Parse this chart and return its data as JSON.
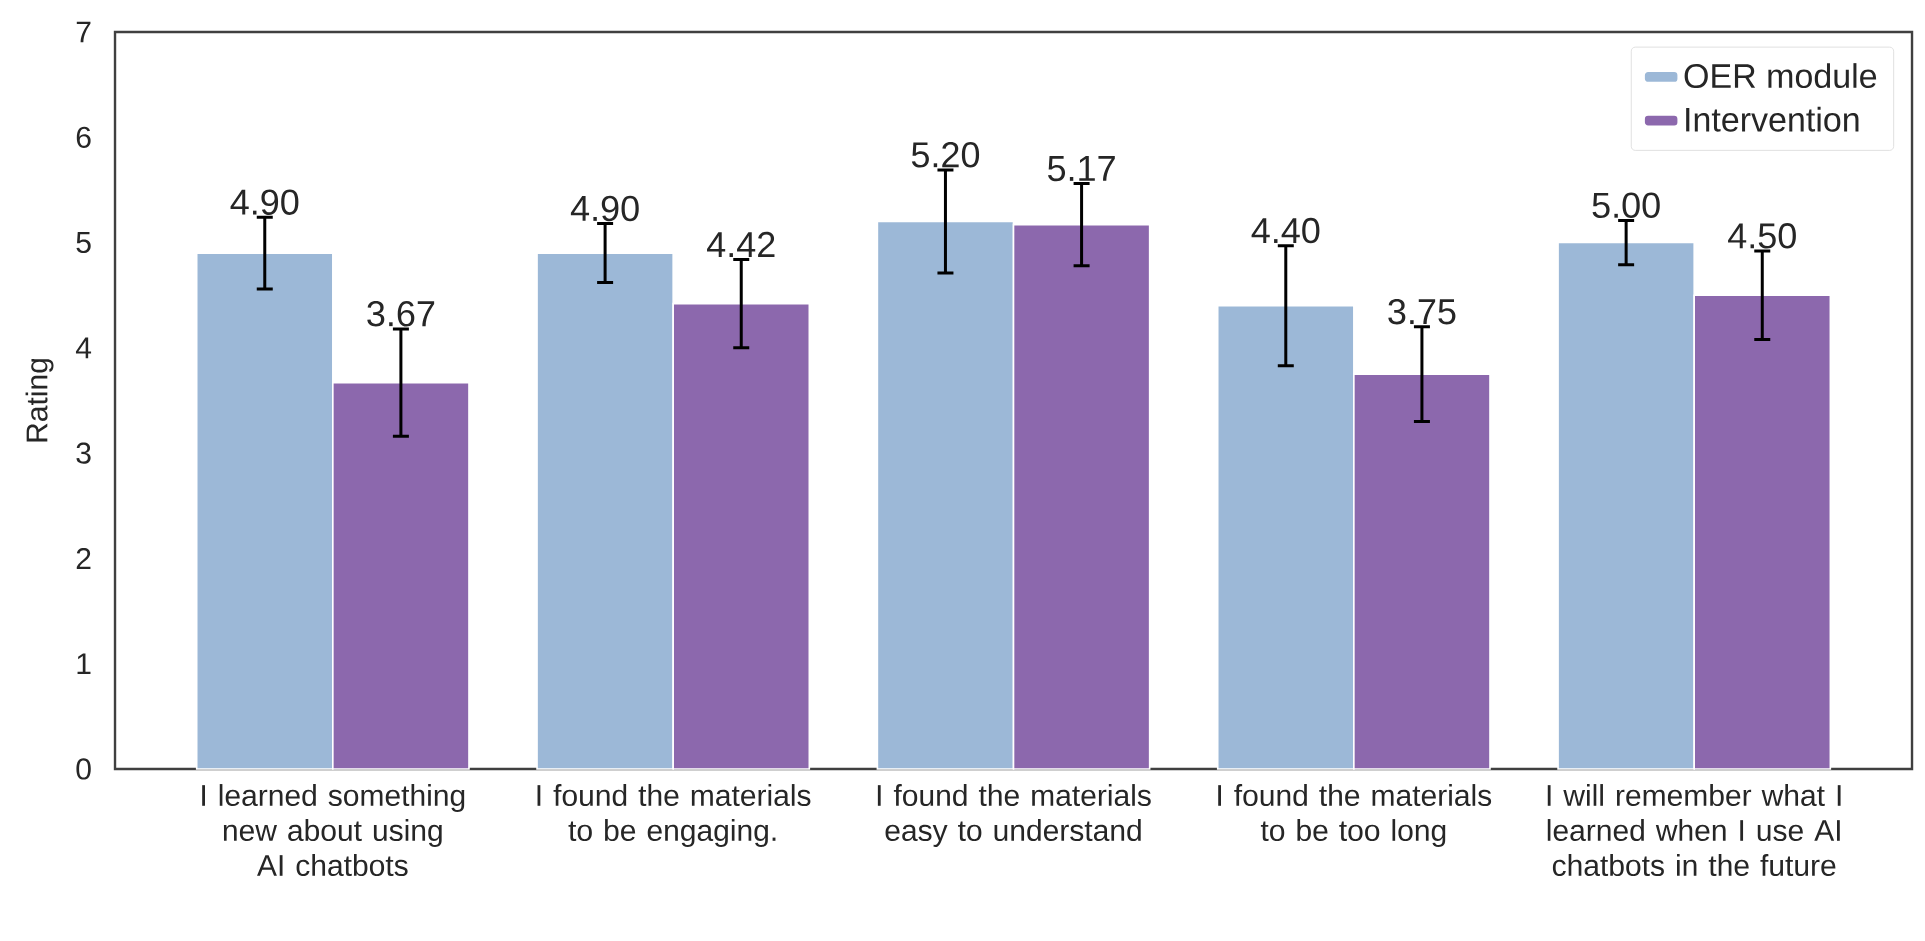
{
  "chart_data": {
    "type": "bar",
    "ylabel": "Rating",
    "categories": [
      "I learned something new about using AI chatbots",
      "I found the materials to be engaging.",
      "I found the materials easy to understand",
      "I found the materials to be too long",
      "I will remember what I learned when I use AI chatbots in the future"
    ],
    "series": [
      {
        "name": "OER module",
        "color": "#9cb8d7",
        "values": [
          4.9,
          4.9,
          5.2,
          4.4,
          5.0
        ],
        "errors": [
          0.34,
          0.28,
          0.49,
          0.57,
          0.21
        ],
        "value_labels": [
          "4.90",
          "4.90",
          "5.20",
          "4.40",
          "5.00"
        ]
      },
      {
        "name": "Intervention",
        "color": "#8c68ad",
        "values": [
          3.67,
          4.42,
          5.17,
          3.75,
          4.5
        ],
        "errors": [
          0.51,
          0.42,
          0.39,
          0.45,
          0.42
        ],
        "value_labels": [
          "3.67",
          "4.42",
          "5.17",
          "3.75",
          "4.50"
        ]
      }
    ],
    "ylim": [
      0,
      7
    ],
    "yticks": [
      0,
      1,
      2,
      3,
      4,
      5,
      6,
      7
    ],
    "grid": false,
    "legend": "top right"
  }
}
